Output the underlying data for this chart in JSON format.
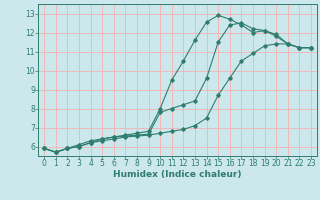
{
  "xlabel": "Humidex (Indice chaleur)",
  "bg_color": "#cce8ec",
  "grid_color": "#f0b8b8",
  "line_color": "#2e7d6e",
  "x_ticks": [
    0,
    1,
    2,
    3,
    4,
    5,
    6,
    7,
    8,
    9,
    10,
    11,
    12,
    13,
    14,
    15,
    16,
    17,
    18,
    19,
    20,
    21,
    22,
    23
  ],
  "y_ticks": [
    6,
    7,
    8,
    9,
    10,
    11,
    12,
    13
  ],
  "ylim": [
    5.5,
    13.5
  ],
  "xlim": [
    -0.5,
    23.5
  ],
  "line1_x": [
    0,
    1,
    2,
    3,
    4,
    5,
    6,
    7,
    8,
    9,
    10,
    11,
    12,
    13,
    14,
    15,
    16,
    17,
    18,
    19,
    20,
    21,
    22,
    23
  ],
  "line1_y": [
    5.9,
    5.7,
    5.9,
    6.1,
    6.3,
    6.4,
    6.5,
    6.6,
    6.7,
    6.8,
    8.0,
    9.5,
    10.5,
    11.6,
    12.55,
    12.9,
    12.7,
    12.4,
    12.0,
    12.1,
    11.8,
    11.4,
    11.2,
    11.2
  ],
  "line2_x": [
    0,
    1,
    2,
    3,
    4,
    5,
    6,
    7,
    8,
    9,
    10,
    11,
    12,
    13,
    14,
    15,
    16,
    17,
    18,
    19,
    20,
    21,
    22,
    23
  ],
  "line2_y": [
    5.9,
    5.7,
    5.9,
    6.0,
    6.2,
    6.4,
    6.5,
    6.55,
    6.6,
    6.65,
    7.8,
    8.0,
    8.2,
    8.4,
    9.6,
    11.5,
    12.4,
    12.5,
    12.2,
    12.1,
    11.9,
    11.4,
    11.2,
    11.2
  ],
  "line3_x": [
    0,
    1,
    2,
    3,
    4,
    5,
    6,
    7,
    8,
    9,
    10,
    11,
    12,
    13,
    14,
    15,
    16,
    17,
    18,
    19,
    20,
    21,
    22,
    23
  ],
  "line3_y": [
    5.9,
    5.7,
    5.9,
    6.0,
    6.2,
    6.3,
    6.4,
    6.5,
    6.55,
    6.6,
    6.7,
    6.8,
    6.9,
    7.1,
    7.5,
    8.7,
    9.6,
    10.5,
    10.9,
    11.3,
    11.4,
    11.4,
    11.2,
    11.2
  ],
  "xlabel_fontsize": 6.5,
  "tick_fontsize": 5.5
}
